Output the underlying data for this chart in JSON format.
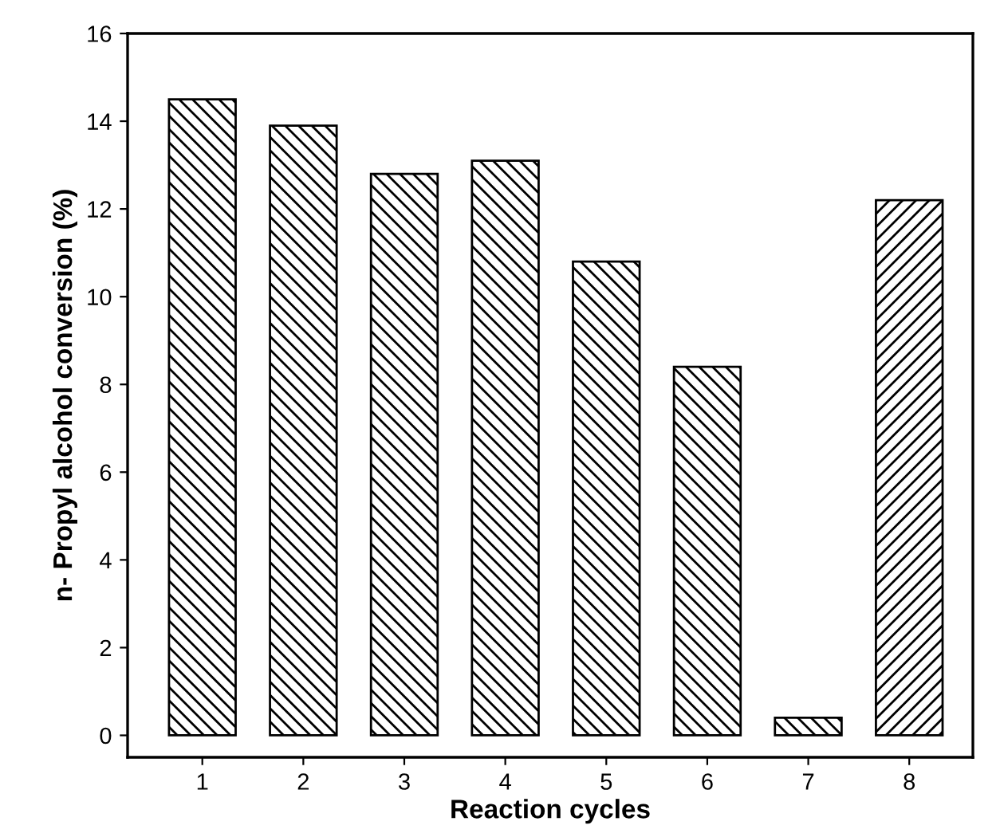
{
  "chart_data": {
    "type": "bar",
    "xlabel": "Reaction cycles",
    "ylabel": "n- Propyl alcohol conversion (%)",
    "categories": [
      "1",
      "2",
      "3",
      "4",
      "5",
      "6",
      "7",
      "8"
    ],
    "values": [
      14.5,
      13.9,
      12.8,
      13.1,
      10.8,
      8.4,
      0.4,
      12.2
    ],
    "color": "#000000",
    "ylim": [
      -0.5,
      16
    ],
    "yticks": [
      0,
      2,
      4,
      6,
      8,
      10,
      12,
      14,
      16
    ],
    "grid": false,
    "legend": false
  }
}
